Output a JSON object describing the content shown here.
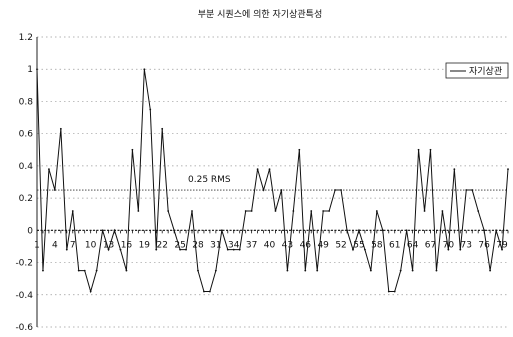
{
  "chart_data": {
    "type": "line",
    "title": "부분 시퀀스에 의한 자기상관특성",
    "xlabel": "",
    "ylabel": "",
    "ylim": [
      -0.6,
      1.2
    ],
    "yticks": [
      1.2,
      1,
      0.8,
      0.6,
      0.4,
      0.2,
      0,
      -0.2,
      -0.4,
      -0.6
    ],
    "grid": true,
    "legend": {
      "position": "top-right",
      "entries": [
        "자기상관"
      ]
    },
    "x_tick_labels": [
      {
        "x": 1,
        "label": "1"
      },
      {
        "x": 4,
        "label": "4"
      },
      {
        "x": 7,
        "label": "7"
      },
      {
        "x": 10,
        "label": "10"
      },
      {
        "x": 13,
        "label": "13"
      },
      {
        "x": 16,
        "label": "16"
      },
      {
        "x": 19,
        "label": "19"
      },
      {
        "x": 22,
        "label": "22"
      },
      {
        "x": 25,
        "label": "25"
      },
      {
        "x": 28,
        "label": "28"
      },
      {
        "x": 31,
        "label": "31"
      },
      {
        "x": 34,
        "label": "34"
      },
      {
        "x": 37,
        "label": "37"
      },
      {
        "x": 40,
        "label": "40"
      },
      {
        "x": 43,
        "label": "43"
      },
      {
        "x": 46,
        "label": "46"
      },
      {
        "x": 49,
        "label": "49"
      },
      {
        "x": 52,
        "label": "52"
      },
      {
        "x": 55,
        "label": "55"
      },
      {
        "x": 58,
        "label": "58"
      },
      {
        "x": 61,
        "label": "61"
      },
      {
        "x": 64,
        "label": "64"
      },
      {
        "x": 67,
        "label": "67"
      },
      {
        "x": 70,
        "label": "70"
      },
      {
        "x": 73,
        "label": "73"
      },
      {
        "x": 76,
        "label": "76"
      },
      {
        "x": 79,
        "label": "79"
      }
    ],
    "reference_line": {
      "y": 0.25,
      "label": "0.25 RMS"
    },
    "series": [
      {
        "name": "자기상관",
        "x": [
          1,
          2,
          3,
          4,
          5,
          6,
          7,
          8,
          9,
          10,
          11,
          12,
          13,
          14,
          15,
          16,
          17,
          18,
          19,
          20,
          21,
          22,
          23,
          24,
          25,
          26,
          27,
          28,
          29,
          30,
          31,
          32,
          33,
          34,
          35,
          36,
          37,
          38,
          39,
          40,
          41,
          42,
          43,
          44,
          45,
          46,
          47,
          48,
          49,
          50,
          51,
          52,
          53,
          54,
          55,
          56,
          57,
          58,
          59,
          60,
          61,
          62,
          63,
          64,
          65,
          66,
          67,
          68,
          69,
          70,
          71,
          72,
          73,
          74,
          75,
          76,
          77,
          78,
          79,
          80
        ],
        "y": [
          1.0,
          -0.25,
          0.38,
          0.25,
          0.63,
          -0.12,
          0.12,
          -0.25,
          -0.25,
          -0.38,
          -0.25,
          0.0,
          -0.12,
          0.0,
          -0.12,
          -0.25,
          0.5,
          0.12,
          1.0,
          0.75,
          -0.12,
          0.63,
          0.12,
          0.0,
          -0.12,
          -0.12,
          0.12,
          -0.25,
          -0.38,
          -0.38,
          -0.25,
          0.0,
          -0.12,
          -0.12,
          -0.12,
          0.12,
          0.12,
          0.38,
          0.25,
          0.38,
          0.12,
          0.25,
          -0.25,
          0.12,
          0.5,
          -0.25,
          0.12,
          -0.25,
          0.12,
          0.12,
          0.25,
          0.25,
          0.0,
          -0.12,
          0.0,
          -0.12,
          -0.25,
          0.12,
          0.0,
          -0.38,
          -0.38,
          -0.25,
          0.0,
          -0.25,
          0.5,
          0.12,
          0.5,
          -0.25,
          0.12,
          -0.12,
          0.38,
          -0.12,
          0.25,
          0.25,
          0.12,
          0.0,
          -0.25,
          0.0,
          -0.12,
          0.38
        ]
      }
    ]
  }
}
